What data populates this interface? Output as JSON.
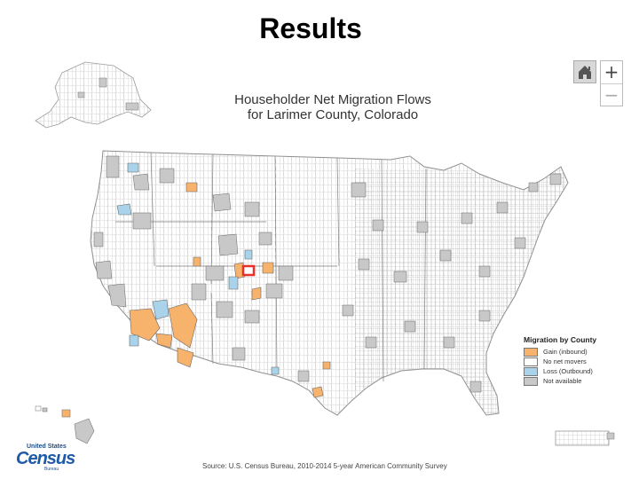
{
  "slide": {
    "title": "Results"
  },
  "map": {
    "title_line1": "Householder Net Migration Flows",
    "title_line2": "for Larimer County, Colorado",
    "focus_county": "Larimer County, Colorado"
  },
  "controls": {
    "home_icon": "home-icon",
    "zoom_in_label": "+",
    "zoom_out_label": "−"
  },
  "legend": {
    "title": "Migration by County",
    "items": [
      {
        "label": "Gain (inbound)",
        "color": "#f7b26b"
      },
      {
        "label": "No net movers",
        "color": "#ffffff"
      },
      {
        "label": "Loss (Outbound)",
        "color": "#a9d3ea"
      },
      {
        "label": "Not available",
        "color": "#c8c8c8"
      }
    ]
  },
  "colors": {
    "gain": "#f7b26b",
    "no_net": "#ffffff",
    "loss": "#a9d3ea",
    "not_available": "#c8c8c8",
    "focus_outline": "#e8302a",
    "county_border": "#9a9a9a"
  },
  "source": "Source: U.S. Census Bureau, 2010-2014 5-year American Community Survey",
  "logo": {
    "top_text": "United States",
    "main_text": "Census",
    "bottom_text": "Bureau"
  }
}
